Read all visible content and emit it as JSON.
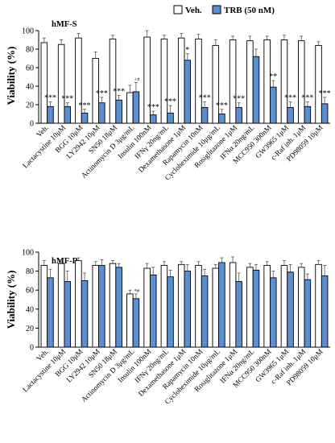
{
  "legend": {
    "items": [
      {
        "label": "Veh.",
        "color": "#ffffff"
      },
      {
        "label": "TRB (50 nM)",
        "color": "#5b8fd1"
      }
    ]
  },
  "chart_data": [
    {
      "type": "bar",
      "title": "hMF-S",
      "ylabel": "Viability (%)",
      "xlabel": "",
      "ylim": [
        0,
        100
      ],
      "yticks": [
        0,
        20,
        40,
        60,
        80,
        100
      ],
      "grid": false,
      "legend_position": "top-right",
      "categories": [
        "Veh.",
        "Lactacystine 10μM",
        "BGG 10μM",
        "LY2942 10μM",
        "SN50 18μM",
        "Actinomycin D 3μg/mL",
        "Insulin 100nM",
        "IFNγ 20ng/mL",
        "Dexamethasone 1μM",
        "Rapamycin 10nM",
        "Cycloheximide 10μg/mL",
        "Rosiglitazone 1μM",
        "IFNα 20ng/mL",
        "MCC950 300nM",
        "GW3965 1μM",
        "c-Raf inh. 1μM",
        "PD98059 10μM"
      ],
      "series": [
        {
          "name": "Veh.",
          "color": "#ffffff",
          "values": [
            87,
            85,
            92,
            70,
            91,
            33,
            93,
            91,
            92,
            91,
            84,
            90,
            89,
            90,
            90,
            89,
            84
          ],
          "errors": [
            5,
            5,
            5,
            7,
            4,
            8,
            7,
            4,
            5,
            5,
            6,
            4,
            5,
            4,
            5,
            5,
            4
          ]
        },
        {
          "name": "TRB (50 nM)",
          "color": "#5b8fd1",
          "values": [
            18,
            18,
            11,
            22,
            25,
            34,
            9,
            11,
            68,
            17,
            10,
            17,
            72,
            39,
            17,
            18,
            21
          ],
          "errors": [
            5,
            4,
            4,
            6,
            5,
            10,
            4,
            8,
            7,
            6,
            5,
            5,
            8,
            7,
            6,
            5,
            7
          ]
        }
      ],
      "significance": [
        "***",
        "***",
        "***",
        "***",
        "***",
        "+#",
        "***",
        "***",
        "*",
        "***",
        "***",
        "***",
        "",
        "**",
        "***",
        "***",
        "***"
      ]
    },
    {
      "type": "bar",
      "title": "hMF-R",
      "ylabel": "Viability (%)",
      "xlabel": "",
      "ylim": [
        0,
        100
      ],
      "yticks": [
        0,
        20,
        40,
        60,
        80,
        100
      ],
      "grid": false,
      "categories": [
        "Veh.",
        "Lactacystine 10μM",
        "BGG 10μM",
        "LY2942 10μM",
        "SN50 18μM",
        "Actinomycin D 3μg/mL",
        "Insulin 100nM",
        "IFNγ 20ng/mL",
        "Dexamethasone 1μM",
        "Rapamycin 10nM",
        "Cycloheximide 10μg/mL",
        "Rosiglitazone 1μM",
        "IFNα 20ng/mL",
        "MCC950 300nM",
        "GW3965 1μM",
        "c-Raf inh. 1μM",
        "PD98059 10μM"
      ],
      "series": [
        {
          "name": "Veh.",
          "color": "#ffffff",
          "values": [
            86,
            88,
            91,
            86,
            88,
            56,
            83,
            86,
            87,
            86,
            83,
            89,
            84,
            86,
            86,
            84,
            87
          ],
          "errors": [
            5,
            4,
            3,
            4,
            3,
            4,
            5,
            4,
            3,
            4,
            4,
            6,
            4,
            4,
            5,
            4,
            4
          ]
        },
        {
          "name": "TRB (50 nM)",
          "color": "#5b8fd1",
          "values": [
            73,
            69,
            70,
            86,
            84,
            51,
            76,
            74,
            80,
            75,
            89,
            69,
            81,
            73,
            79,
            71,
            75
          ],
          "errors": [
            9,
            11,
            8,
            6,
            4,
            5,
            8,
            7,
            7,
            7,
            5,
            9,
            6,
            7,
            8,
            6,
            11
          ]
        }
      ],
      "significance": [
        "",
        "",
        "",
        "",
        "",
        "*#",
        "",
        "",
        "",
        "",
        "",
        "",
        "",
        "",
        "",
        "",
        ""
      ]
    }
  ]
}
